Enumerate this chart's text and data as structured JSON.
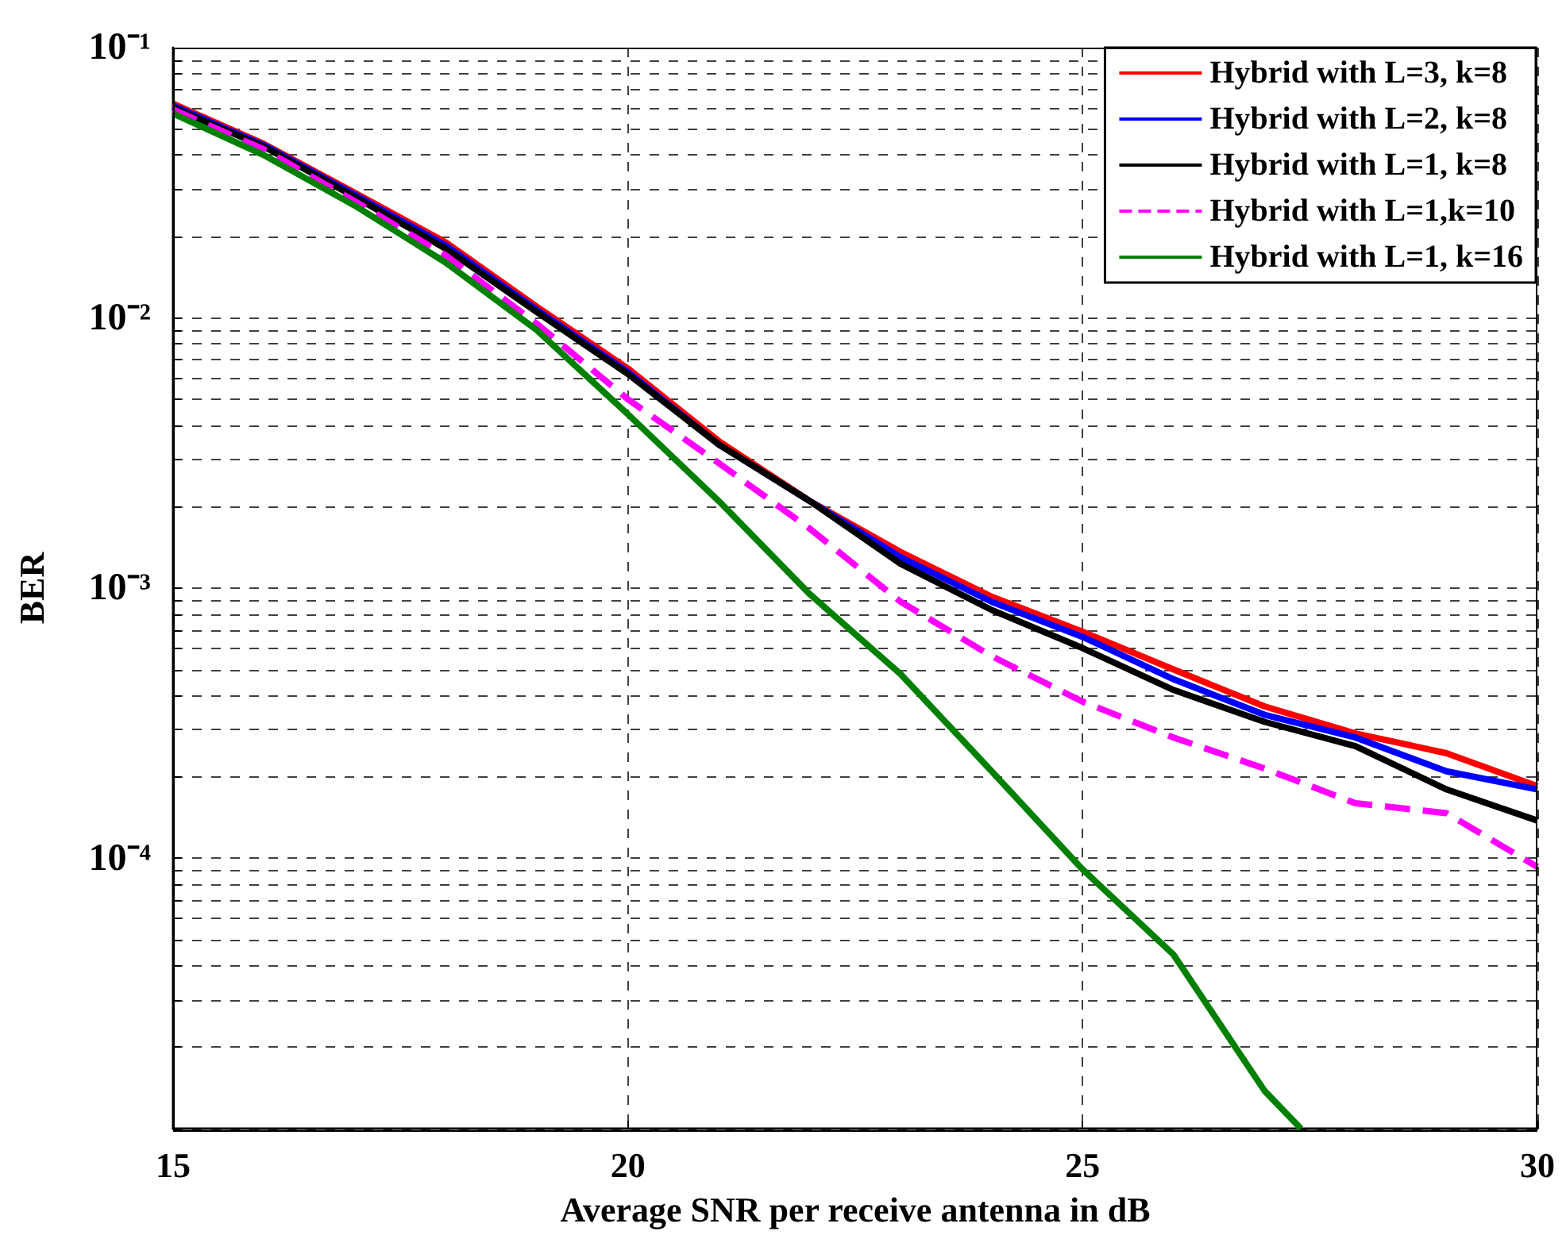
{
  "chart_data": {
    "type": "line",
    "xlabel": "Average SNR per receive antenna in dB",
    "ylabel": "BER",
    "log": "y",
    "grid": true,
    "legend": "top right",
    "line_style": "solid",
    "marker": "none",
    "xlim": [
      15,
      30
    ],
    "xticks": [
      15,
      20,
      25,
      30
    ],
    "ylim": [
      1e-05,
      0.1
    ],
    "yticks": [
      {
        "value": 1e-05,
        "label": null
      },
      {
        "value": 2e-05,
        "label": null
      },
      {
        "value": 3e-05,
        "label": null
      },
      {
        "value": 4e-05,
        "label": null
      },
      {
        "value": 5e-05,
        "label": null
      },
      {
        "value": 6e-05,
        "label": null
      },
      {
        "value": 7e-05,
        "label": null
      },
      {
        "value": 8e-05,
        "label": null
      },
      {
        "value": 9e-05,
        "label": null
      },
      {
        "value": 0.0001,
        "label": "10⁻⁴"
      },
      {
        "value": 0.0002,
        "label": null
      },
      {
        "value": 0.0003,
        "label": null
      },
      {
        "value": 0.0004,
        "label": null
      },
      {
        "value": 0.0005,
        "label": null
      },
      {
        "value": 0.0006,
        "label": null
      },
      {
        "value": 0.0007,
        "label": null
      },
      {
        "value": 0.0008,
        "label": null
      },
      {
        "value": 0.0009,
        "label": null
      },
      {
        "value": 0.001,
        "label": "10⁻³"
      },
      {
        "value": 0.002,
        "label": null
      },
      {
        "value": 0.003,
        "label": null
      },
      {
        "value": 0.004,
        "label": null
      },
      {
        "value": 0.005,
        "label": null
      },
      {
        "value": 0.006,
        "label": null
      },
      {
        "value": 0.007,
        "label": null
      },
      {
        "value": 0.008,
        "label": null
      },
      {
        "value": 0.009,
        "label": null
      },
      {
        "value": 0.01,
        "label": "10⁻²"
      },
      {
        "value": 0.02,
        "label": null
      },
      {
        "value": 0.03,
        "label": null
      },
      {
        "value": 0.04,
        "label": null
      },
      {
        "value": 0.05,
        "label": null
      },
      {
        "value": 0.06,
        "label": null
      },
      {
        "value": 0.07,
        "label": null
      },
      {
        "value": 0.08,
        "label": null
      },
      {
        "value": 0.09,
        "label": null
      },
      {
        "value": 0.1,
        "label": "10⁻¹"
      }
    ],
    "x": [
      15,
      16,
      17,
      18,
      19,
      20,
      21,
      22,
      23,
      24,
      25,
      26,
      27,
      28,
      29,
      30
    ],
    "series": [
      {
        "name": "Hybrid with L=3, k=8",
        "color": "#ff0000",
        "values": [
          0.062,
          0.044,
          0.029,
          0.019,
          0.011,
          0.0065,
          0.0035,
          0.0021,
          0.00136,
          0.00093,
          0.00069,
          0.0005,
          0.000365,
          0.00029,
          0.000245,
          0.000185
        ]
      },
      {
        "name": "Hybrid with L=2, k=8",
        "color": "#0000ff",
        "values": [
          0.061,
          0.0435,
          0.0285,
          0.0185,
          0.0107,
          0.0063,
          0.0034,
          0.0021,
          0.0013,
          0.00089,
          0.00066,
          0.00046,
          0.00034,
          0.00028,
          0.00021,
          0.00018
        ]
      },
      {
        "name": "Hybrid with L=1, k=8",
        "color": "#000000",
        "values": [
          0.06,
          0.043,
          0.028,
          0.018,
          0.0105,
          0.0062,
          0.0034,
          0.0021,
          0.00123,
          0.00083,
          0.0006,
          0.00042,
          0.00032,
          0.00026,
          0.00018,
          0.000138
        ]
      },
      {
        "name": "Hybrid with L=1,k=10",
        "color": "#ff00ff",
        "line_style": "dashed",
        "values": [
          0.059,
          0.042,
          0.027,
          0.017,
          0.0095,
          0.005,
          0.0029,
          0.00166,
          0.00089,
          0.00056,
          0.00038,
          0.00028,
          0.000215,
          0.00016,
          0.000147,
          9.3e-05
        ]
      },
      {
        "name": "Hybrid with L=1, k=16",
        "color": "#008000",
        "x": [
          15,
          16,
          17,
          18,
          19,
          20,
          21,
          22,
          23,
          24,
          25,
          26,
          27,
          27.4
        ],
        "values": [
          0.057,
          0.04,
          0.026,
          0.016,
          0.009,
          0.0044,
          0.0021,
          0.00095,
          0.00048,
          0.00021,
          9.1e-05,
          4.4e-05,
          1.38e-05,
          1e-05
        ]
      }
    ]
  }
}
